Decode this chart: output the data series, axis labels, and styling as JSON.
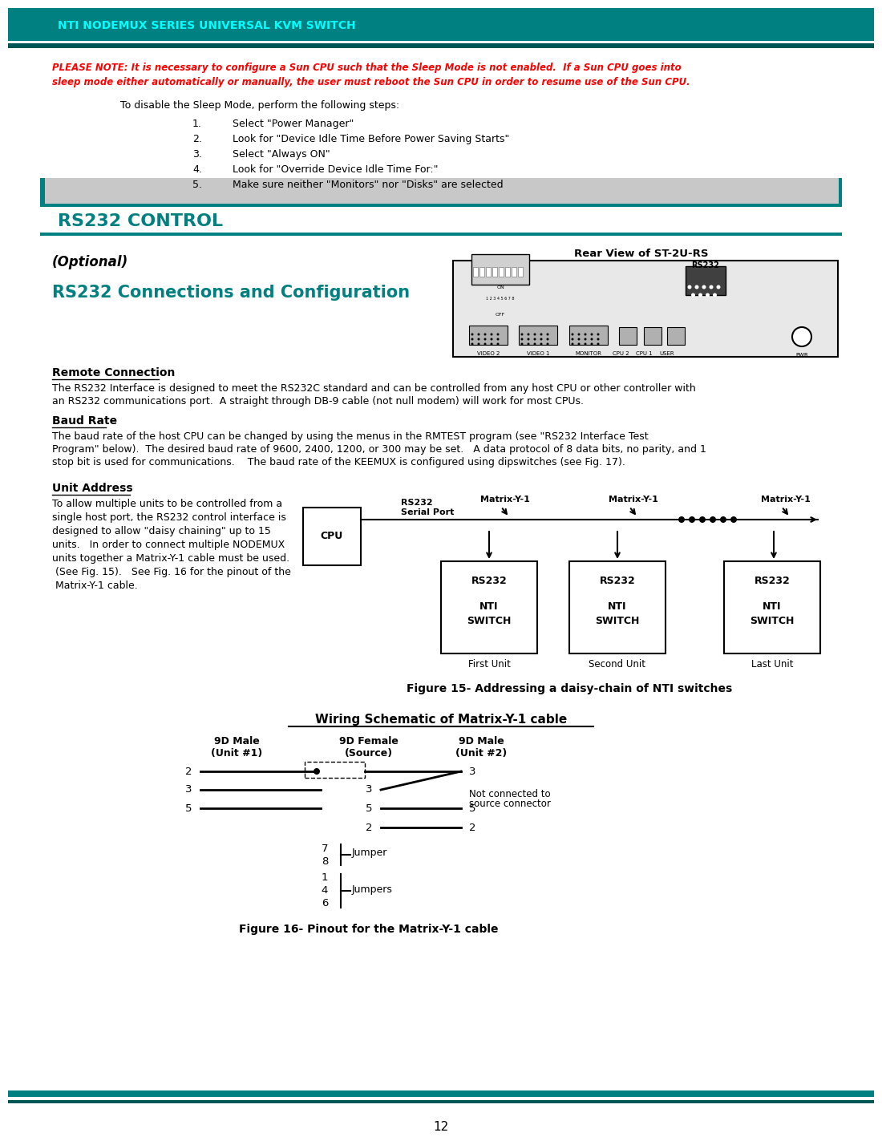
{
  "header_text": "NTI NODEMUX SERIES UNIVERSAL KVM SWITCH",
  "header_color": "#00FFFF",
  "header_bg": "#008080",
  "please_note_line1": "PLEASE NOTE: It is necessary to configure a Sun CPU such that the Sleep Mode is not enabled.  If a Sun CPU goes into",
  "please_note_line2": "sleep mode either automatically or manually, the user must reboot the Sun CPU in order to resume use of the Sun CPU.",
  "please_note_color": "#FF0000",
  "disable_sleep_intro": "To disable the Sleep Mode, perform the following steps:",
  "steps": [
    "Select \"Power Manager\"",
    "Look for \"Device Idle Time Before Power Saving Starts\"",
    "Select \"Always ON\"",
    "Look for \"Override Device Idle Time For:\"",
    "Make sure neither \"Monitors\" nor \"Disks\" are selected"
  ],
  "section_title": "RS232 CONTROL",
  "section_title_color": "#008080",
  "optional_text": "(Optional)",
  "subsection_title": "RS232 Connections and Configuration",
  "subsection_color": "#008080",
  "rear_view_label": "Rear View of ST-2U-RS",
  "remote_connection_title": "Remote Connection",
  "remote_connection_text": "The RS232 Interface is designed to meet the RS232C standard and can be controlled from any host CPU or other controller with\nan RS232 communications port.  A straight through DB-9 cable (not null modem) will work for most CPUs.",
  "baud_rate_title": "Baud Rate",
  "baud_rate_text": "The baud rate of the host CPU can be changed by using the menus in the RMTEST program (see \"RS232 Interface Test\nProgram\" below).  The desired baud rate of 9600, 2400, 1200, or 300 may be set.   A data protocol of 8 data bits, no parity, and 1\nstop bit is used for communications.    The baud rate of the KEEMUX is configured using dipswitches (see Fig. 17).",
  "unit_address_title": "Unit Address",
  "unit_address_text": "To allow multiple units to be controlled from a\nsingle host port, the RS232 control interface is\ndesigned to allow \"daisy chaining\" up to 15\nunits.   In order to connect multiple NODEMUX\nunits together a Matrix-Y-1 cable must be used.\n (See Fig. 15).   See Fig. 16 for the pinout of the\n Matrix-Y-1 cable.",
  "figure15_caption": "Figure 15- Addressing a daisy-chain of NTI switches",
  "figure16_title": "Wiring Schematic of Matrix-Y-1 cable",
  "figure16_caption": "Figure 16- Pinout for the Matrix-Y-1 cable",
  "page_number": "12",
  "bg_color": "#FFFFFF",
  "text_color": "#000000",
  "teal_color": "#008080"
}
